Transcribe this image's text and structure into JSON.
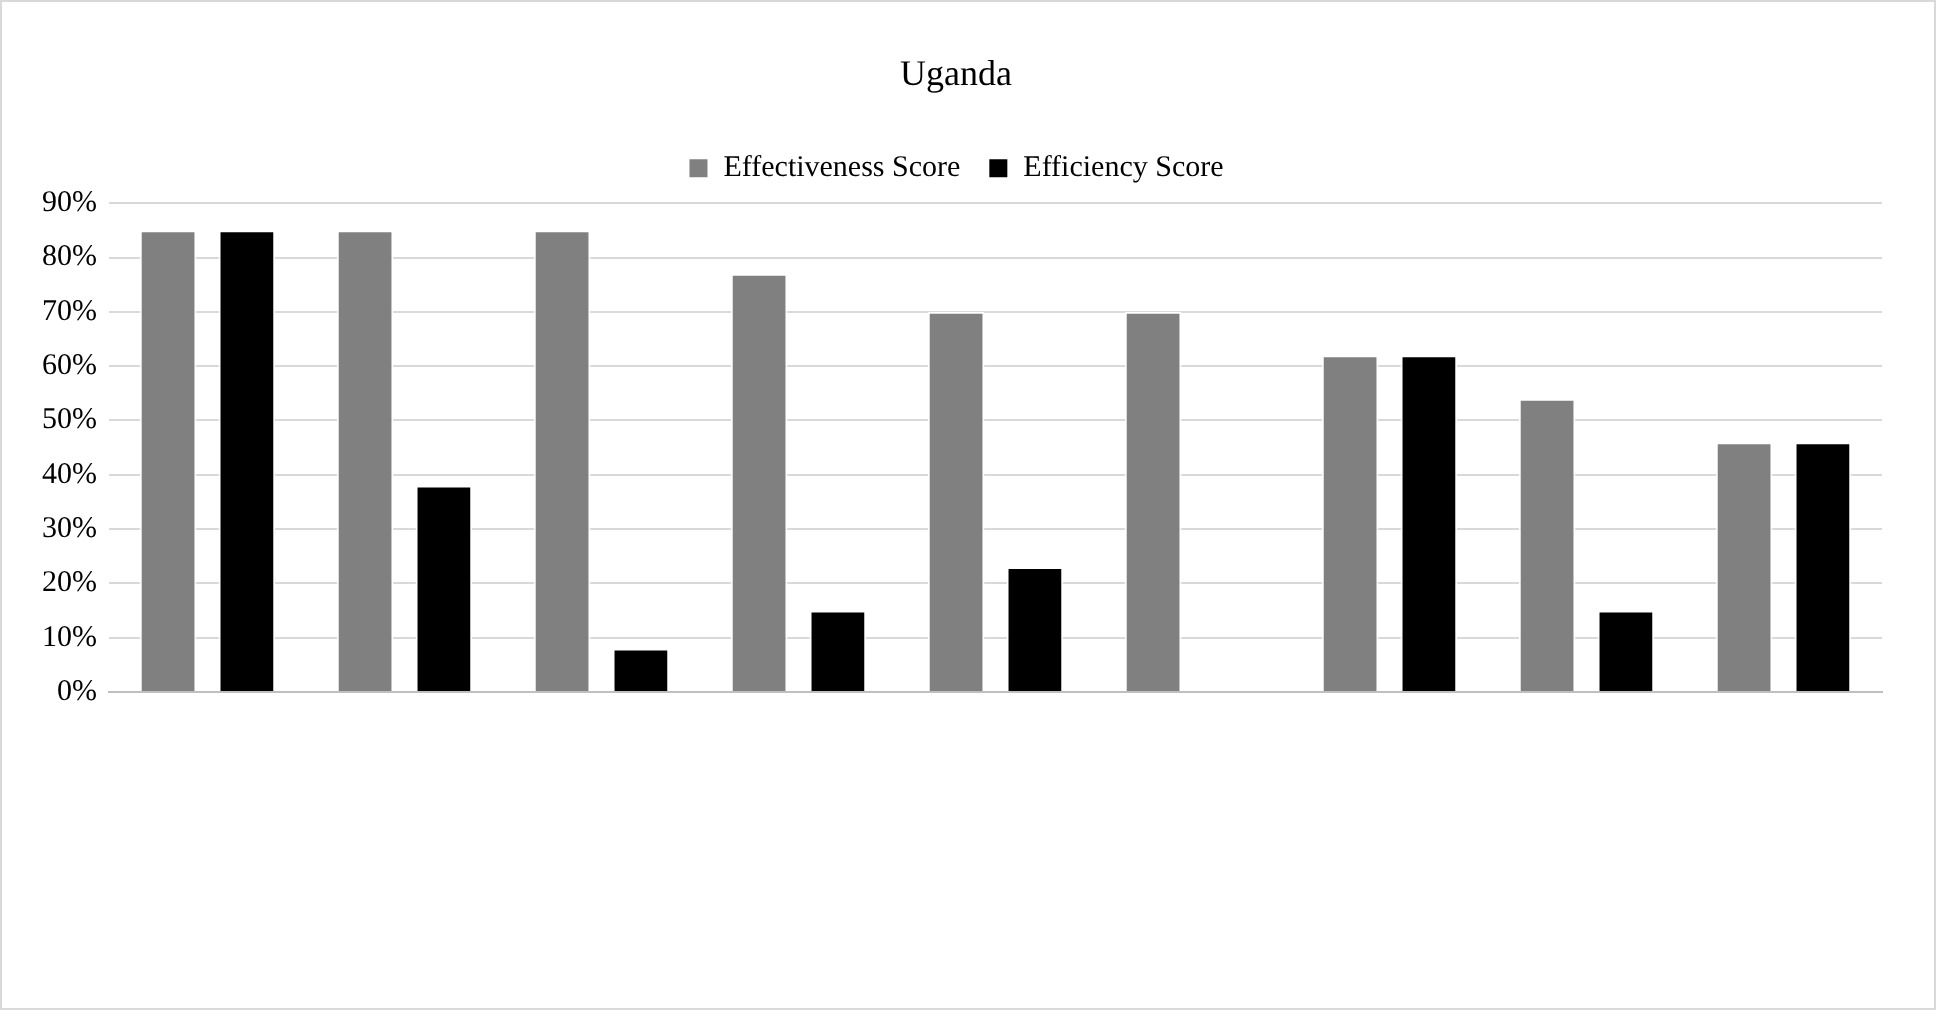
{
  "chart_data": {
    "type": "bar",
    "title": "Uganda",
    "categories": [
      null,
      null,
      null,
      null,
      null,
      null,
      null,
      null,
      null
    ],
    "series": [
      {
        "name": "Effectiveness Score",
        "color": "#808080",
        "values": [
          85,
          85,
          85,
          77,
          70,
          70,
          62,
          54,
          46
        ]
      },
      {
        "name": "Efficiency Score",
        "color": "#000000",
        "values": [
          85,
          38,
          8,
          15,
          23,
          0,
          62,
          15,
          46
        ]
      }
    ],
    "ylim": [
      0,
      90
    ],
    "yticks": [
      {
        "value": 0,
        "label": "0%"
      },
      {
        "value": 10,
        "label": "10%"
      },
      {
        "value": 20,
        "label": "20%"
      },
      {
        "value": 30,
        "label": "30%"
      },
      {
        "value": 40,
        "label": "40%"
      },
      {
        "value": 50,
        "label": "50%"
      },
      {
        "value": 60,
        "label": "60%"
      },
      {
        "value": 70,
        "label": "70%"
      },
      {
        "value": 80,
        "label": "80%"
      },
      {
        "value": 90,
        "label": "90%"
      }
    ],
    "grid": "y",
    "legend": "top"
  }
}
